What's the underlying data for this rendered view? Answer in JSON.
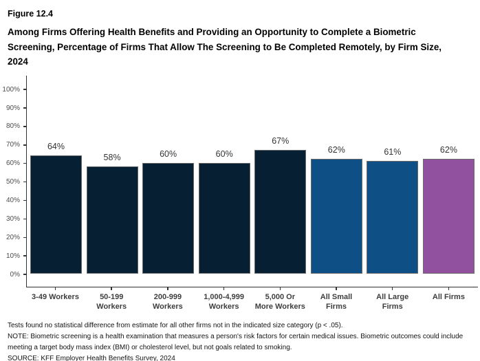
{
  "header": {
    "figure_label": "Figure 12.4",
    "title": "Among Firms Offering Health Benefits and Providing an Opportunity to Complete a Biometric Screening, Percentage of Firms That Allow The Screening to Be Completed Remotely, by Firm Size, 2024"
  },
  "chart_data": {
    "type": "bar",
    "title": "Among Firms Offering Health Benefits and Providing an Opportunity to Complete a Biometric Screening, Percentage of Firms That Allow The Screening to Be Completed Remotely, by Firm Size, 2024",
    "categories": [
      "3-49 Workers",
      "50-199\nWorkers",
      "200-999\nWorkers",
      "1,000-4,999\nWorkers",
      "5,000 Or\nMore Workers",
      "All Small\nFirms",
      "All Large\nFirms",
      "All Firms"
    ],
    "values": [
      64,
      58,
      60,
      60,
      67,
      62,
      61,
      62
    ],
    "value_labels": [
      "64%",
      "58%",
      "60%",
      "60%",
      "67%",
      "62%",
      "61%",
      "62%"
    ],
    "bar_colors": [
      "#071F33",
      "#071F33",
      "#071F33",
      "#071F33",
      "#071F33",
      "#0E4F86",
      "#0E4F86",
      "#92519E"
    ],
    "bar_border_color": "#6B6B6B",
    "xlabel": "",
    "ylabel": "",
    "ylim": [
      0,
      100
    ],
    "yticks": [
      0,
      10,
      20,
      30,
      40,
      50,
      60,
      70,
      80,
      90,
      100
    ],
    "ytick_labels": [
      "0%",
      "10%",
      "20%",
      "30%",
      "40%",
      "50%",
      "60%",
      "70%",
      "80%",
      "90%",
      "100%"
    ],
    "grid": false,
    "legend": false,
    "colors": {
      "size_category_bars": "#071F33",
      "all_small_large_bars": "#0E4F86",
      "all_firms_bar": "#92519E",
      "axis_line": "#2E2E2E"
    }
  },
  "footer": {
    "note1": "Tests found no statistical difference from estimate for all other firms not in the indicated size category (p < .05).",
    "note2": "NOTE: Biometric screening is a health examination that measures a person's risk factors for certain medical issues. Biometric outcomes could include meeting a target body mass index (BMI) or cholesterol level, but not goals related to smoking.",
    "source": "SOURCE: KFF Employer Health Benefits Survey, 2024"
  }
}
